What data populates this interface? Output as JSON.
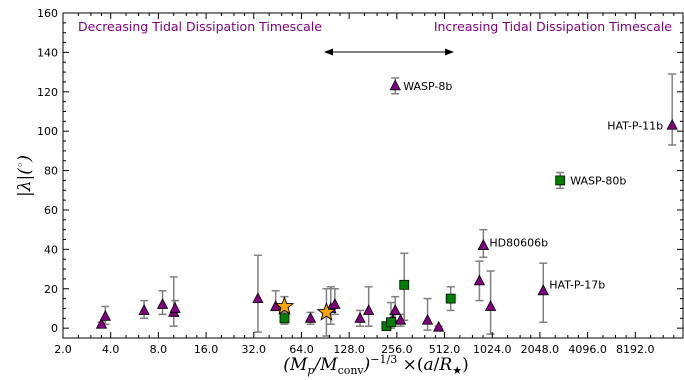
{
  "chart_data": {
    "type": "scatter",
    "title": "",
    "xlabel": "(M_p/M_conv)^-1/3 ×(a/R_★)",
    "ylabel": "|λ|(°)",
    "xscale": "log2",
    "xlim": [
      2.0,
      16384
    ],
    "ylim": [
      -5,
      160
    ],
    "x_ticks": [
      2.0,
      4.0,
      8.0,
      16.0,
      32.0,
      64.0,
      128.0,
      256.0,
      512.0,
      1024.0,
      2048.0,
      4096.0,
      8192.0
    ],
    "y_ticks": [
      0,
      20,
      40,
      60,
      80,
      100,
      120,
      140,
      160
    ],
    "grid": false,
    "colors": {
      "triangle": "#800080",
      "square": "#008000",
      "star": "#FFA500",
      "errorbar": "#808080"
    },
    "regions": {
      "left": "Decreasing Tidal Dissipation Timescale",
      "right": "Increasing Tidal Dissipation Timescale"
    },
    "series": [
      {
        "marker": "triangle",
        "points": [
          {
            "x": 3.5,
            "y": 2,
            "err": [
              1,
              1
            ]
          },
          {
            "x": 3.7,
            "y": 6,
            "err": [
              4,
              5
            ]
          },
          {
            "x": 6.5,
            "y": 9,
            "err": [
              4,
              5
            ]
          },
          {
            "x": 8.5,
            "y": 12,
            "err": [
              5,
              7
            ]
          },
          {
            "x": 10.0,
            "y": 8,
            "err": [
              7,
              18
            ]
          },
          {
            "x": 10.2,
            "y": 10,
            "err": [
              4,
              4
            ]
          },
          {
            "x": 34,
            "y": 15,
            "err": [
              17,
              22
            ]
          },
          {
            "x": 44,
            "y": 11,
            "err": [
              2,
              8
            ]
          },
          {
            "x": 73,
            "y": 5,
            "err": [
              3,
              3
            ]
          },
          {
            "x": 98,
            "y": 10,
            "err": [
              8,
              11
            ]
          },
          {
            "x": 104,
            "y": 12,
            "err": [
              5,
              8
            ]
          },
          {
            "x": 150,
            "y": 5,
            "err": [
              4,
              4
            ]
          },
          {
            "x": 170,
            "y": 9,
            "err": [
              8,
              12
            ]
          },
          {
            "x": 242,
            "y": 4,
            "err": [
              3,
              3
            ]
          },
          {
            "x": 250,
            "y": 9,
            "err": [
              5,
              7
            ]
          },
          {
            "x": 270,
            "y": 4,
            "err": [
              3,
              3
            ]
          },
          {
            "x": 400,
            "y": 4,
            "err": [
              5,
              11
            ]
          },
          {
            "x": 470,
            "y": 0.5,
            "err": [
              0.5,
              0.5
            ]
          },
          {
            "x": 850,
            "y": 24,
            "err": [
              10,
              10
            ]
          },
          {
            "x": 900,
            "y": 42,
            "err": [
              6,
              8
            ]
          },
          {
            "x": 1000,
            "y": 11,
            "err": [
              14,
              18
            ]
          },
          {
            "x": 2150,
            "y": 19,
            "err": [
              16,
              14
            ]
          },
          {
            "x": 250,
            "y": 123,
            "err": [
              4,
              4
            ],
            "label": "WASP-8b"
          },
          {
            "x": 14000,
            "y": 103,
            "err": [
              10,
              26
            ],
            "label": "HAT-P-11b"
          },
          {
            "x": 900,
            "y": 42,
            "err": [
              0,
              0
            ],
            "label": "HD80606b"
          },
          {
            "x": 2150,
            "y": 19,
            "err": [
              0,
              0
            ],
            "label": "HAT-P-17b"
          }
        ]
      },
      {
        "marker": "square",
        "points": [
          {
            "x": 50,
            "y": 5,
            "err": [
              3,
              3
            ]
          },
          {
            "x": 220,
            "y": 1,
            "err": [
              1,
              1
            ]
          },
          {
            "x": 235,
            "y": 3,
            "err": [
              3,
              10
            ]
          },
          {
            "x": 285,
            "y": 22,
            "err": [
              18,
              16
            ]
          },
          {
            "x": 560,
            "y": 15,
            "err": [
              6,
              6
            ]
          },
          {
            "x": 2750,
            "y": 75,
            "err": [
              4,
              4
            ],
            "label": "WASP-80b"
          }
        ]
      },
      {
        "marker": "star",
        "points": [
          {
            "x": 50,
            "y": 11,
            "err": [
              5,
              5
            ]
          },
          {
            "x": 92,
            "y": 8,
            "err": [
              12,
              12
            ]
          }
        ]
      }
    ]
  }
}
